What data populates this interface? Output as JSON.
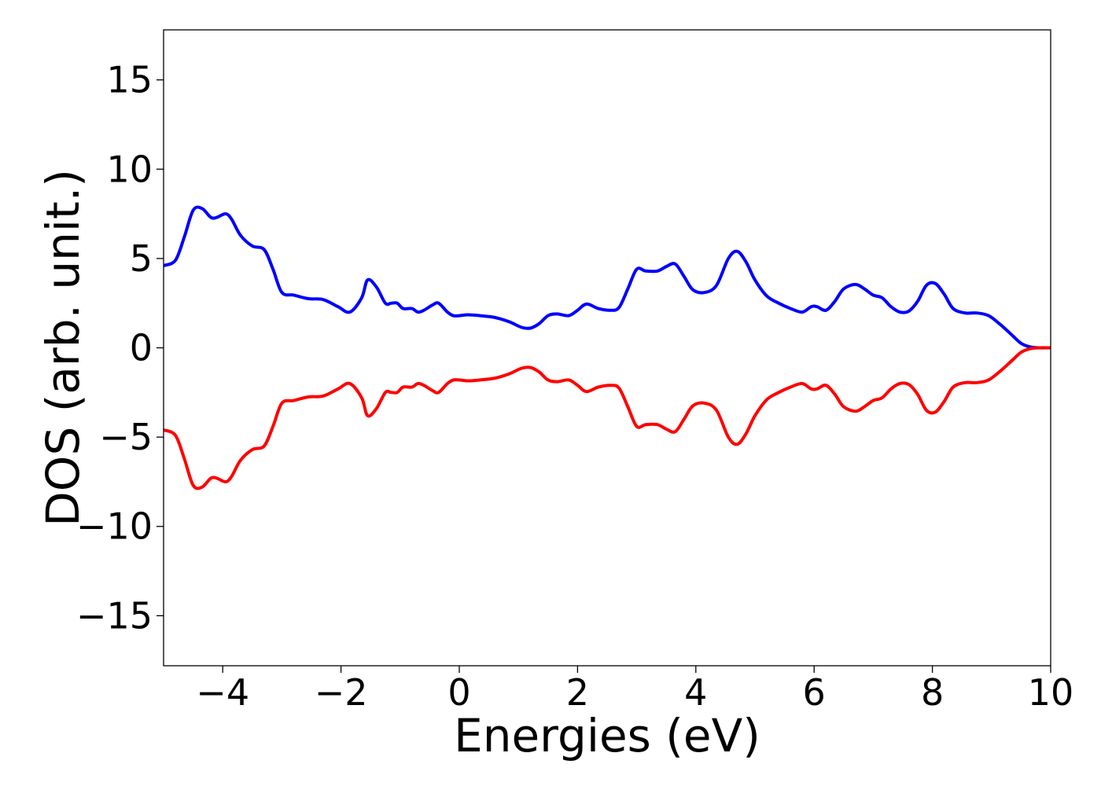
{
  "chart_data": {
    "type": "line",
    "title": "",
    "xlabel": "Energies (eV)",
    "ylabel": "DOS (arb. unit.)",
    "xlim": [
      -5,
      10
    ],
    "ylim": [
      -17.8,
      17.8
    ],
    "grid": false,
    "legend": "none",
    "x_ticks": [
      -4,
      -2,
      0,
      2,
      4,
      6,
      8,
      10
    ],
    "x_tick_labels": [
      "−4",
      "−2",
      "0",
      "2",
      "4",
      "6",
      "8",
      "10"
    ],
    "y_ticks": [
      -15,
      -10,
      -5,
      0,
      5,
      10,
      15
    ],
    "y_tick_labels": [
      "−15",
      "−10",
      "−5",
      "0",
      "5",
      "10",
      "15"
    ],
    "series": [
      {
        "color": "#0000ff",
        "x": [
          -5.0,
          -4.8,
          -4.65,
          -4.5,
          -4.35,
          -4.2,
          -4.1,
          -3.95,
          -3.85,
          -3.7,
          -3.5,
          -3.3,
          -3.15,
          -3.0,
          -2.8,
          -2.55,
          -2.3,
          -2.05,
          -1.85,
          -1.65,
          -1.55,
          -1.4,
          -1.25,
          -1.15,
          -1.05,
          -0.95,
          -0.8,
          -0.7,
          -0.6,
          -0.45,
          -0.35,
          -0.2,
          -0.1,
          0.0,
          0.15,
          0.35,
          0.6,
          0.85,
          1.05,
          1.2,
          1.35,
          1.5,
          1.65,
          1.85,
          2.0,
          2.15,
          2.35,
          2.55,
          2.7,
          2.85,
          3.0,
          3.15,
          3.35,
          3.5,
          3.65,
          3.8,
          3.95,
          4.15,
          4.35,
          4.55,
          4.7,
          4.85,
          5.0,
          5.2,
          5.4,
          5.6,
          5.8,
          5.95,
          6.05,
          6.2,
          6.35,
          6.5,
          6.7,
          6.85,
          7.0,
          7.15,
          7.3,
          7.45,
          7.6,
          7.75,
          7.9,
          8.05,
          8.2,
          8.35,
          8.55,
          8.75,
          8.95,
          9.15,
          9.35,
          9.5,
          9.65,
          9.8,
          10.0
        ],
        "values": [
          4.6,
          4.9,
          6.2,
          7.7,
          7.8,
          7.3,
          7.3,
          7.5,
          7.2,
          6.3,
          5.7,
          5.5,
          4.4,
          3.1,
          2.95,
          2.75,
          2.7,
          2.3,
          2.0,
          2.8,
          3.8,
          3.4,
          2.5,
          2.5,
          2.5,
          2.2,
          2.2,
          2.0,
          2.1,
          2.4,
          2.5,
          2.0,
          1.8,
          1.8,
          1.85,
          1.8,
          1.7,
          1.45,
          1.15,
          1.1,
          1.35,
          1.8,
          1.9,
          1.8,
          2.1,
          2.45,
          2.2,
          2.1,
          2.25,
          3.3,
          4.4,
          4.3,
          4.3,
          4.55,
          4.7,
          4.0,
          3.25,
          3.1,
          3.5,
          5.0,
          5.4,
          4.8,
          3.8,
          2.9,
          2.5,
          2.2,
          2.0,
          2.3,
          2.3,
          2.1,
          2.6,
          3.3,
          3.55,
          3.3,
          2.95,
          2.8,
          2.3,
          2.0,
          2.05,
          2.6,
          3.5,
          3.6,
          3.0,
          2.2,
          1.95,
          1.95,
          1.8,
          1.3,
          0.7,
          0.25,
          0.05,
          0.0,
          0.0
        ]
      },
      {
        "color": "#ff0000",
        "x": [
          -5.0,
          -4.8,
          -4.65,
          -4.5,
          -4.35,
          -4.2,
          -4.1,
          -3.95,
          -3.85,
          -3.7,
          -3.5,
          -3.3,
          -3.15,
          -3.0,
          -2.8,
          -2.55,
          -2.3,
          -2.05,
          -1.85,
          -1.65,
          -1.55,
          -1.4,
          -1.25,
          -1.15,
          -1.05,
          -0.95,
          -0.8,
          -0.7,
          -0.6,
          -0.45,
          -0.35,
          -0.2,
          -0.1,
          0.0,
          0.15,
          0.35,
          0.6,
          0.85,
          1.05,
          1.2,
          1.35,
          1.5,
          1.65,
          1.85,
          2.0,
          2.15,
          2.35,
          2.55,
          2.7,
          2.85,
          3.0,
          3.15,
          3.35,
          3.5,
          3.65,
          3.8,
          3.95,
          4.15,
          4.35,
          4.55,
          4.7,
          4.85,
          5.0,
          5.2,
          5.4,
          5.6,
          5.8,
          5.95,
          6.05,
          6.2,
          6.35,
          6.5,
          6.7,
          6.85,
          7.0,
          7.15,
          7.3,
          7.45,
          7.6,
          7.75,
          7.9,
          8.05,
          8.2,
          8.35,
          8.55,
          8.75,
          8.95,
          9.15,
          9.35,
          9.5,
          9.65,
          9.8,
          10.0
        ],
        "values": [
          -4.6,
          -4.9,
          -6.2,
          -7.7,
          -7.8,
          -7.3,
          -7.3,
          -7.5,
          -7.2,
          -6.3,
          -5.7,
          -5.5,
          -4.4,
          -3.1,
          -2.95,
          -2.75,
          -2.7,
          -2.3,
          -2.0,
          -2.8,
          -3.8,
          -3.4,
          -2.5,
          -2.5,
          -2.5,
          -2.2,
          -2.2,
          -2.0,
          -2.1,
          -2.4,
          -2.5,
          -2.0,
          -1.8,
          -1.8,
          -1.85,
          -1.8,
          -1.7,
          -1.45,
          -1.15,
          -1.1,
          -1.35,
          -1.8,
          -1.9,
          -1.8,
          -2.1,
          -2.45,
          -2.2,
          -2.1,
          -2.25,
          -3.3,
          -4.4,
          -4.3,
          -4.3,
          -4.55,
          -4.7,
          -4.0,
          -3.25,
          -3.1,
          -3.5,
          -5.0,
          -5.4,
          -4.8,
          -3.8,
          -2.9,
          -2.5,
          -2.2,
          -2.0,
          -2.3,
          -2.3,
          -2.1,
          -2.6,
          -3.3,
          -3.55,
          -3.3,
          -2.95,
          -2.8,
          -2.3,
          -2.0,
          -2.05,
          -2.6,
          -3.5,
          -3.6,
          -3.0,
          -2.2,
          -1.95,
          -1.95,
          -1.8,
          -1.3,
          -0.7,
          -0.25,
          -0.05,
          0.0,
          0.0
        ]
      }
    ]
  }
}
